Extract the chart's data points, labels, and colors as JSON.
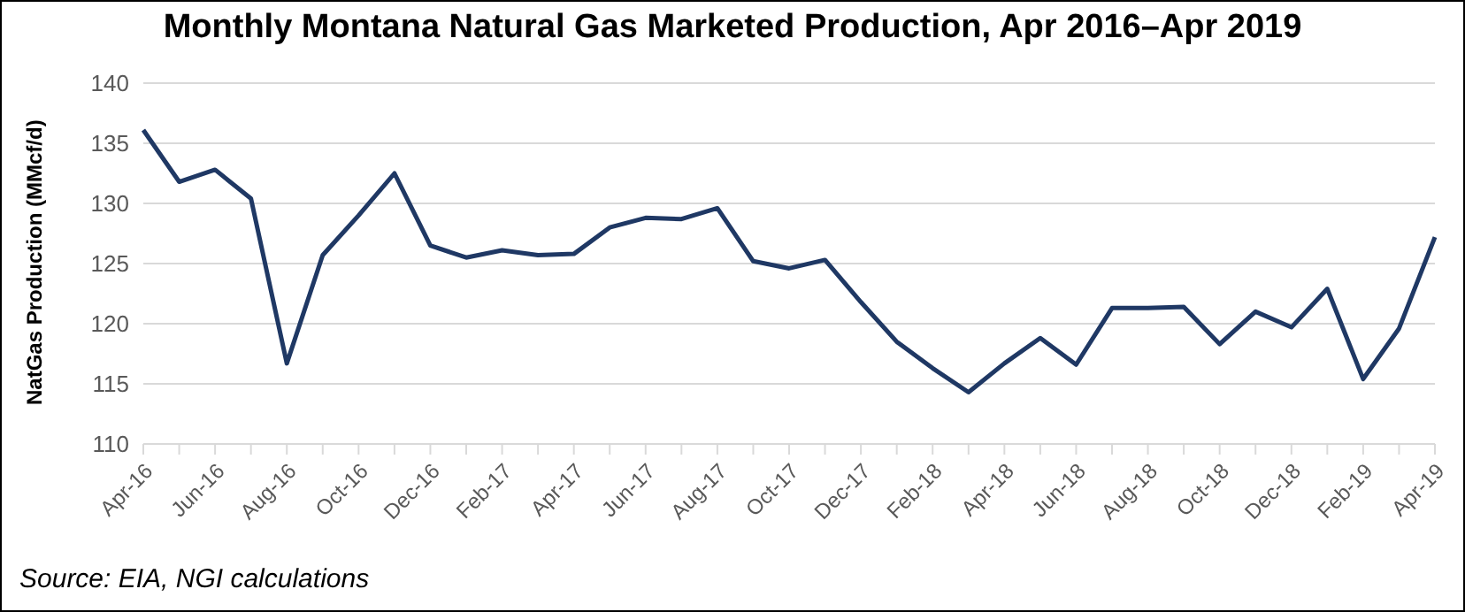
{
  "chart_data": {
    "type": "line",
    "title": "Monthly Montana Natural Gas Marketed Production, Apr 2016–Apr 2019",
    "ylabel": "NatGas Production (MMcf/d)",
    "categories": [
      "Apr-16",
      null,
      "Jun-16",
      null,
      "Aug-16",
      null,
      "Oct-16",
      null,
      "Dec-16",
      null,
      "Feb-17",
      null,
      "Apr-17",
      null,
      "Jun-17",
      null,
      "Aug-17",
      null,
      "Oct-17",
      null,
      "Dec-17",
      null,
      "Feb-18",
      null,
      "Apr-18",
      null,
      "Jun-18",
      null,
      "Aug-18",
      null,
      "Oct-18",
      null,
      "Dec-18",
      null,
      "Feb-19",
      null,
      "Apr-19"
    ],
    "series": [
      {
        "color": "#1f3864",
        "values": [
          136.1,
          131.8,
          132.8,
          130.4,
          116.7,
          125.7,
          129.0,
          132.5,
          126.5,
          125.5,
          126.1,
          125.7,
          125.8,
          128.0,
          128.8,
          128.7,
          129.6,
          125.2,
          124.6,
          125.3,
          121.8,
          118.5,
          116.3,
          114.3,
          116.7,
          118.8,
          116.6,
          121.3,
          121.3,
          121.4,
          118.3,
          121.0,
          119.7,
          122.9,
          115.4,
          119.6,
          127.2
        ]
      }
    ],
    "ylim": [
      110,
      140
    ],
    "yticks": [
      110,
      115,
      120,
      125,
      130,
      135,
      140
    ],
    "grid": "y",
    "marker": "none",
    "line_style": "solid",
    "annotations": [
      "Source: EIA, NGI calculations"
    ]
  }
}
